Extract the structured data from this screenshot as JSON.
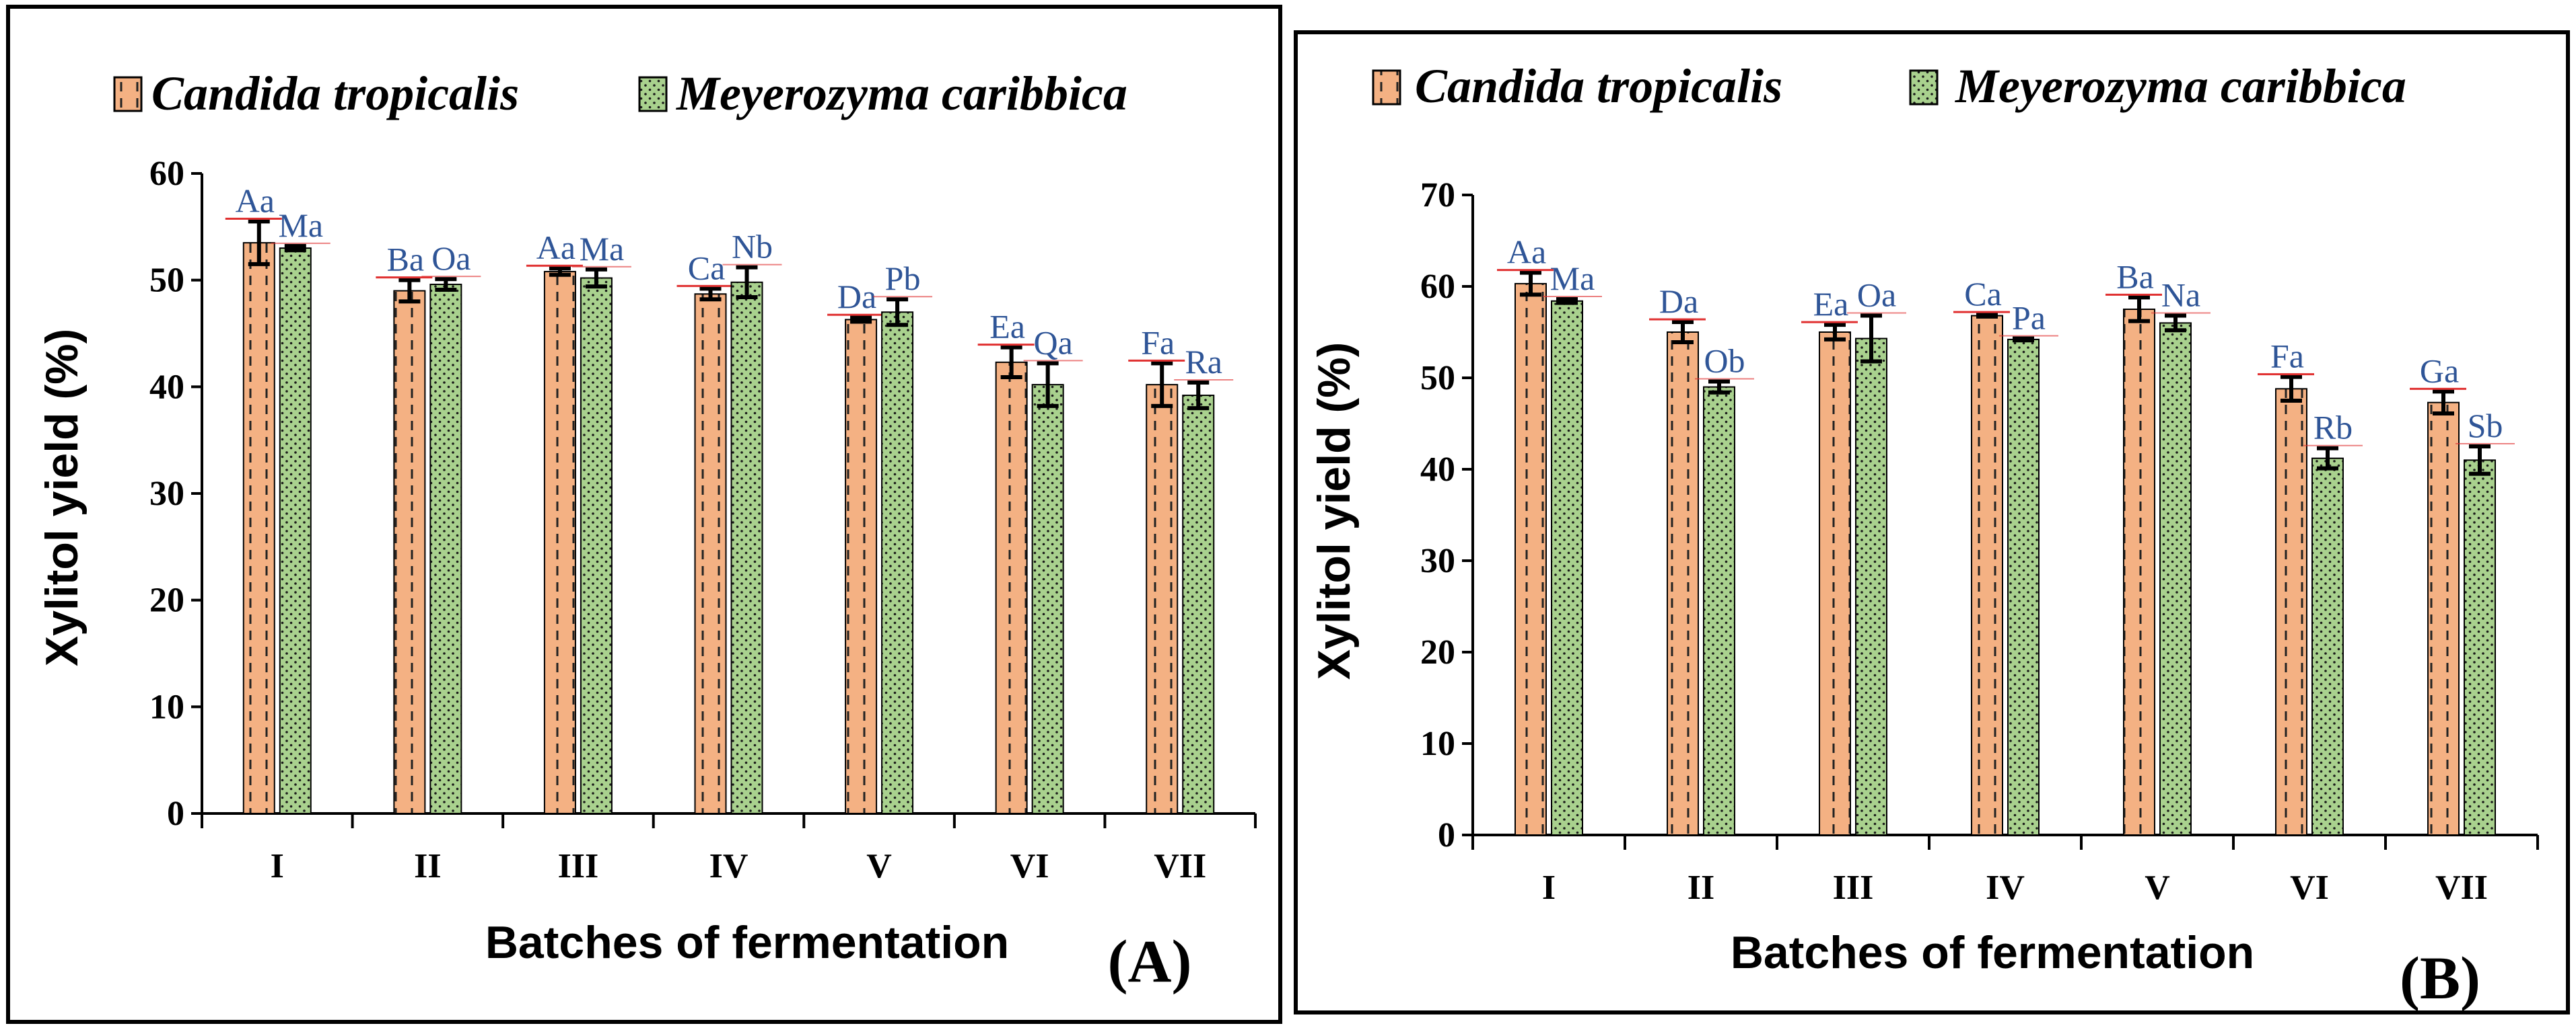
{
  "colors": {
    "series0": "#F4B183",
    "series1": "#A9D18E",
    "sig_text": "#2F5597",
    "sig_line": "#E03030"
  },
  "chart_data": [
    {
      "type": "bar",
      "panel_label": "(A)",
      "xlabel": "Batches of fermentation",
      "ylabel": "Xylitol yield (%)",
      "ylim": [
        0,
        60
      ],
      "yticks": [
        0,
        10,
        20,
        30,
        40,
        50,
        60
      ],
      "categories": [
        "I",
        "II",
        "III",
        "IV",
        "V",
        "VI",
        "VII"
      ],
      "legend": [
        "Candida tropicalis",
        "Meyerozyma caribbica"
      ],
      "series": [
        {
          "name": "Candida tropicalis",
          "values": [
            53.5,
            49,
            50.8,
            48.7,
            46.3,
            42.3,
            40.2
          ],
          "errors": [
            2,
            1,
            0.3,
            0.5,
            0.2,
            1.4,
            2
          ],
          "labels": [
            "Aa",
            "Ba",
            "Aa",
            "Ca",
            "Da",
            "Ea",
            "Fa"
          ]
        },
        {
          "name": "Meyerozyma caribbica",
          "values": [
            53,
            49.6,
            50.2,
            49.8,
            47,
            40.2,
            39.2
          ],
          "errors": [
            0.2,
            0.5,
            0.8,
            1.4,
            1.2,
            2,
            1.2
          ],
          "labels": [
            "Ma",
            "Oa",
            "Ma",
            "Nb",
            "Pb",
            "Qa",
            "Ra"
          ]
        }
      ]
    },
    {
      "type": "bar",
      "panel_label": "(B)",
      "xlabel": "Batches of fermentation",
      "ylabel": "Xylitol yield (%)",
      "ylim": [
        0,
        70
      ],
      "yticks": [
        0,
        10,
        20,
        30,
        40,
        50,
        60,
        70
      ],
      "categories": [
        "I",
        "II",
        "III",
        "IV",
        "V",
        "VI",
        "VII"
      ],
      "legend": [
        "Candida tropicalis",
        "Meyerozyma caribbica"
      ],
      "series": [
        {
          "name": "Candida tropicalis",
          "values": [
            60.3,
            55,
            55,
            56.8,
            57.5,
            48.8,
            47.3
          ],
          "errors": [
            1.2,
            1.1,
            0.8,
            0.1,
            1.3,
            1.3,
            1.2
          ],
          "labels": [
            "Aa",
            "Da",
            "Ea",
            "Ca",
            "Ba",
            "Fa",
            "Ga"
          ]
        },
        {
          "name": "Meyerozyma caribbica",
          "values": [
            58.4,
            49,
            54.3,
            54.2,
            56,
            41.2,
            41
          ],
          "errors": [
            0.2,
            0.6,
            2.5,
            0.1,
            0.8,
            1.1,
            1.5
          ],
          "labels": [
            "Ma",
            "Ob",
            "Oa",
            "Pa",
            "Na",
            "Rb",
            "Sb"
          ]
        }
      ]
    }
  ]
}
